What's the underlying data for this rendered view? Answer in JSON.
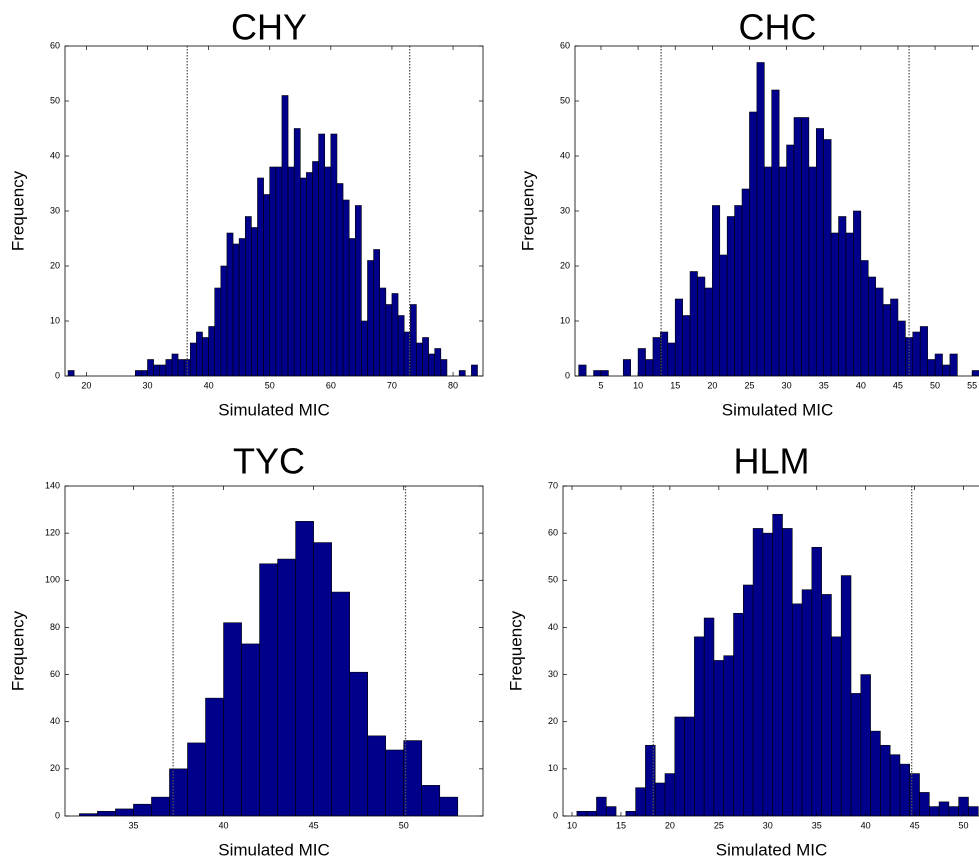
{
  "chart_data": [
    {
      "type": "histogram",
      "title": "CHY",
      "xlabel": "Simulated MIC",
      "ylabel": "Frequency",
      "color": "#00008b",
      "bins": [
        17,
        18,
        19,
        20,
        21,
        22,
        23,
        24,
        25,
        26,
        27,
        28,
        29,
        30,
        31,
        32,
        33,
        34,
        35,
        36,
        37,
        38,
        39,
        40,
        41,
        42,
        43,
        44,
        45,
        46,
        47,
        48,
        49,
        50,
        51,
        52,
        53,
        54,
        55,
        56,
        57,
        58,
        59,
        60,
        61,
        62,
        63,
        64,
        65,
        66,
        67,
        68,
        69,
        70,
        71,
        72,
        73,
        74,
        75,
        76,
        77,
        78,
        79,
        80,
        81,
        82,
        83,
        84
      ],
      "values": [
        1,
        0,
        0,
        0,
        0,
        0,
        0,
        0,
        0,
        0,
        0,
        1,
        1,
        3,
        2,
        2,
        3,
        4,
        3,
        3,
        6,
        8,
        7,
        9,
        16,
        20,
        26,
        24,
        25,
        29,
        27,
        36,
        33,
        38,
        38,
        51,
        38,
        45,
        36,
        37,
        39,
        44,
        38,
        44,
        35,
        32,
        25,
        31,
        10,
        21,
        23,
        16,
        13,
        15,
        11,
        8,
        13,
        6,
        7,
        4,
        5,
        3,
        0,
        0,
        1,
        0,
        2
      ],
      "xlim": [
        16.5,
        84.9
      ],
      "ylim": [
        0,
        60
      ],
      "xticks": [
        20,
        30,
        40,
        50,
        60,
        70,
        80
      ],
      "yticks": [
        0,
        10,
        20,
        30,
        40,
        50,
        60
      ],
      "vlines": [
        36.5,
        72.9
      ]
    },
    {
      "type": "histogram",
      "title": "CHC",
      "xlabel": "Simulated MIC",
      "ylabel": "Frequency",
      "color": "#00008b",
      "bins": [
        2,
        3,
        4,
        5,
        6,
        7,
        8,
        9,
        10,
        11,
        12,
        13,
        14,
        15,
        16,
        17,
        18,
        19,
        20,
        21,
        22,
        23,
        24,
        25,
        26,
        27,
        28,
        29,
        30,
        31,
        32,
        33,
        34,
        35,
        36,
        37,
        38,
        39,
        40,
        41,
        42,
        43,
        44,
        45,
        46,
        47,
        48,
        49,
        50,
        51,
        52,
        53,
        54,
        55,
        56
      ],
      "values": [
        2,
        0,
        1,
        1,
        0,
        0,
        3,
        0,
        5,
        3,
        7,
        8,
        6,
        14,
        11,
        19,
        18,
        16,
        31,
        22,
        29,
        31,
        34,
        48,
        57,
        38,
        52,
        38,
        42,
        47,
        47,
        38,
        45,
        43,
        26,
        29,
        26,
        30,
        21,
        18,
        16,
        13,
        14,
        10,
        7,
        8,
        9,
        3,
        4,
        2,
        4,
        0,
        0,
        1
      ],
      "xlim": [
        1.5,
        57.4
      ],
      "ylim": [
        0,
        60
      ],
      "xticks": [
        5,
        10,
        15,
        20,
        25,
        30,
        35,
        40,
        45,
        50,
        55
      ],
      "yticks": [
        0,
        10,
        20,
        30,
        40,
        50,
        60
      ],
      "vlines": [
        13.1,
        46.5
      ]
    },
    {
      "type": "histogram",
      "title": "TYC",
      "xlabel": "Simulated MIC",
      "ylabel": "Frequency",
      "color": "#00008b",
      "bins": [
        32,
        33,
        34,
        35,
        36,
        37,
        38,
        39,
        40,
        41,
        42,
        43,
        44,
        45,
        46,
        47,
        48,
        49,
        50,
        51,
        52,
        53
      ],
      "values": [
        1,
        2,
        3,
        5,
        8,
        20,
        31,
        50,
        82,
        73,
        107,
        109,
        125,
        116,
        95,
        61,
        34,
        28,
        32,
        13,
        8
      ],
      "xlim": [
        31.2,
        54.4
      ],
      "ylim": [
        0,
        140
      ],
      "xticks": [
        35,
        40,
        45,
        50
      ],
      "yticks": [
        0,
        20,
        40,
        60,
        80,
        100,
        120,
        140
      ],
      "vlines": [
        37.2,
        50.1
      ]
    },
    {
      "type": "histogram",
      "title": "HLM",
      "xlabel": "Simulated MIC",
      "ylabel": "Frequency",
      "color": "#00008b",
      "bins": [
        10.5,
        11.5,
        12.5,
        13.5,
        14.5,
        15.5,
        16.5,
        17.5,
        18.5,
        19.5,
        20.5,
        21.5,
        22.5,
        23.5,
        24.5,
        25.5,
        26.5,
        27.5,
        28.5,
        29.5,
        30.5,
        31.5,
        32.5,
        33.5,
        34.5,
        35.5,
        36.5,
        37.5,
        38.5,
        39.5,
        40.5,
        41.5,
        42.5,
        43.5,
        44.5,
        45.5,
        46.5,
        47.5,
        48.5,
        49.5,
        50.5,
        51.5
      ],
      "values": [
        1,
        1,
        4,
        2,
        0,
        1,
        6,
        15,
        7,
        9,
        21,
        21,
        38,
        42,
        33,
        34,
        43,
        49,
        61,
        60,
        64,
        61,
        45,
        48,
        57,
        47,
        38,
        51,
        26,
        30,
        18,
        15,
        13,
        11,
        9,
        5,
        2,
        3,
        2,
        4,
        2
      ],
      "xlim": [
        9.08,
        52.7
      ],
      "ylim": [
        0,
        70
      ],
      "xticks": [
        10,
        15,
        20,
        25,
        30,
        35,
        40,
        45,
        50
      ],
      "yticks": [
        0,
        10,
        20,
        30,
        40,
        50,
        60,
        70
      ],
      "vlines": [
        18.3,
        44.7
      ]
    }
  ]
}
